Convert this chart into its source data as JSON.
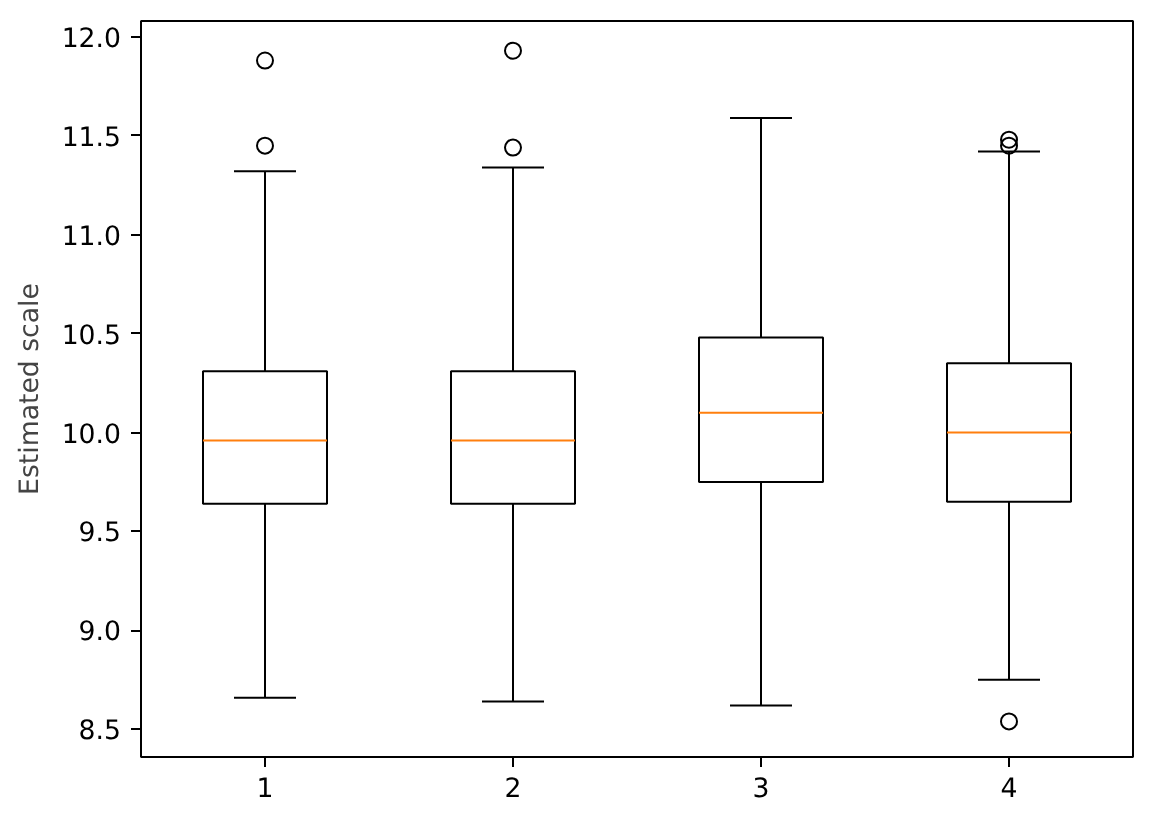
{
  "chart_data": {
    "type": "box",
    "ylabel": "Estimated scale",
    "categories": [
      "1",
      "2",
      "3",
      "4"
    ],
    "ylim": [
      8.36,
      12.08
    ],
    "yticks": [
      8.5,
      {
        "value": 9,
        "label": "9.0"
      },
      9.5,
      {
        "value": 10,
        "label": "10.0"
      },
      10.5,
      {
        "value": 11,
        "label": "11.0"
      },
      11.5,
      {
        "value": 12,
        "label": "12.0"
      }
    ],
    "color": "#000000",
    "grid": false,
    "boxes": [
      {
        "low": 8.66,
        "q1": 9.64,
        "median": 9.96,
        "q3": 10.31,
        "high": 11.32,
        "outliers": [
          11.45,
          11.88
        ]
      },
      {
        "low": 8.64,
        "q1": 9.64,
        "median": 9.96,
        "q3": 10.31,
        "high": 11.34,
        "outliers": [
          11.44,
          11.93
        ]
      },
      {
        "low": 8.62,
        "q1": 9.75,
        "median": 10.1,
        "q3": 10.48,
        "high": 11.59
      },
      {
        "low": 8.75,
        "q1": 9.65,
        "median": 10.0,
        "q3": 10.35,
        "high": 11.42,
        "outliers": [
          11.45,
          11.48,
          8.54
        ]
      }
    ]
  }
}
